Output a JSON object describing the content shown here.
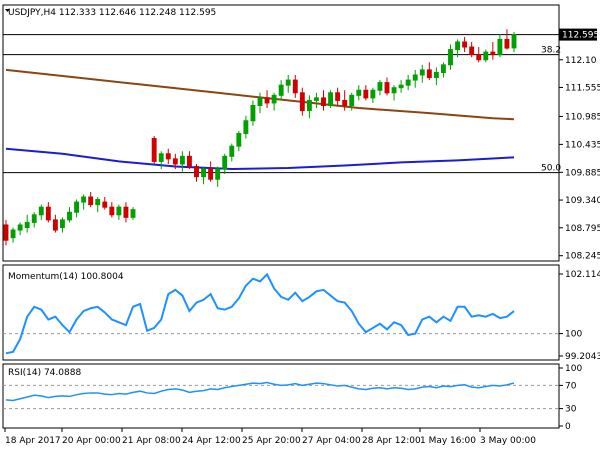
{
  "chart_data": [
    {
      "id": "price",
      "type": "candlestick",
      "title": "USDJPY,H4  112.333  112.646  112.248  112.595",
      "ylim": [
        108.2,
        113.0
      ],
      "x_ticks": [
        "18 Apr 2017",
        "20 Apr 00:00",
        "21 Apr 08:00",
        "24 Apr 12:00",
        "25 Apr 20:00",
        "27 Apr 04:00",
        "28 Apr 12:00",
        "1 May 16:00",
        "3 May 00:00"
      ],
      "y_ticks": [
        "112.595",
        "112.10",
        "111.555",
        "110.985",
        "110.435",
        "109.885",
        "109.340",
        "108.795",
        "108.245"
      ],
      "last_price": 112.595,
      "last_price_label": "112.595",
      "fib_levels": [
        {
          "label": "38.2",
          "value": 112.2
        },
        {
          "label": "50.0",
          "value": 109.88
        }
      ],
      "colors": {
        "bull": "#00a000",
        "bear": "#d00000",
        "ma_slow": "#8b4513",
        "ma_fast": "#1c1cd6",
        "price_line": "#000000"
      },
      "candles": [
        [
          108.85,
          108.95,
          108.45,
          108.55
        ],
        [
          108.6,
          108.8,
          108.5,
          108.75
        ],
        [
          108.75,
          108.9,
          108.65,
          108.85
        ],
        [
          108.8,
          109.05,
          108.7,
          108.9
        ],
        [
          108.9,
          109.1,
          108.8,
          109.05
        ],
        [
          109.05,
          109.25,
          108.95,
          109.2
        ],
        [
          109.2,
          109.3,
          108.9,
          108.95
        ],
        [
          108.95,
          109.05,
          108.7,
          108.75
        ],
        [
          108.8,
          109.0,
          108.7,
          108.95
        ],
        [
          108.95,
          109.2,
          108.9,
          109.1
        ],
        [
          109.1,
          109.35,
          109.0,
          109.3
        ],
        [
          109.3,
          109.45,
          109.15,
          109.4
        ],
        [
          109.4,
          109.5,
          109.2,
          109.25
        ],
        [
          109.25,
          109.4,
          109.1,
          109.35
        ],
        [
          109.3,
          109.4,
          109.15,
          109.2
        ],
        [
          109.2,
          109.3,
          109.0,
          109.05
        ],
        [
          109.05,
          109.25,
          108.95,
          109.2
        ],
        [
          109.2,
          109.3,
          108.9,
          109.0
        ],
        [
          109.0,
          109.2,
          108.95,
          109.15
        ],
        [
          null,
          null,
          null,
          null
        ],
        [
          null,
          null,
          null,
          null
        ],
        [
          110.55,
          110.6,
          110.05,
          110.1
        ],
        [
          110.1,
          110.3,
          109.95,
          110.25
        ],
        [
          110.25,
          110.35,
          110.05,
          110.15
        ],
        [
          110.15,
          110.25,
          109.95,
          110.05
        ],
        [
          110.05,
          110.3,
          109.9,
          110.2
        ],
        [
          110.2,
          110.3,
          109.95,
          110.0
        ],
        [
          110.0,
          110.05,
          109.7,
          109.8
        ],
        [
          109.8,
          110.0,
          109.65,
          109.95
        ],
        [
          109.95,
          110.1,
          109.7,
          109.75
        ],
        [
          109.75,
          110.0,
          109.6,
          109.95
        ],
        [
          109.95,
          110.25,
          109.85,
          110.2
        ],
        [
          110.2,
          110.45,
          110.1,
          110.4
        ],
        [
          110.4,
          110.7,
          110.3,
          110.65
        ],
        [
          110.65,
          111.0,
          110.55,
          110.9
        ],
        [
          110.9,
          111.3,
          110.8,
          111.2
        ],
        [
          111.2,
          111.45,
          111.05,
          111.35
        ],
        [
          111.35,
          111.5,
          111.15,
          111.25
        ],
        [
          111.25,
          111.45,
          111.1,
          111.4
        ],
        [
          111.4,
          111.7,
          111.3,
          111.6
        ],
        [
          111.6,
          111.8,
          111.45,
          111.7
        ],
        [
          111.7,
          111.8,
          111.35,
          111.45
        ],
        [
          111.45,
          111.55,
          111.0,
          111.1
        ],
        [
          111.1,
          111.4,
          110.95,
          111.3
        ],
        [
          111.3,
          111.45,
          111.15,
          111.35
        ],
        [
          111.35,
          111.5,
          111.1,
          111.2
        ],
        [
          111.2,
          111.5,
          111.15,
          111.45
        ],
        [
          111.45,
          111.55,
          111.2,
          111.3
        ],
        [
          111.3,
          111.5,
          111.1,
          111.2
        ],
        [
          111.2,
          111.45,
          111.1,
          111.4
        ],
        [
          111.4,
          111.6,
          111.3,
          111.5
        ],
        [
          111.5,
          111.6,
          111.3,
          111.35
        ],
        [
          111.35,
          111.55,
          111.25,
          111.5
        ],
        [
          111.5,
          111.7,
          111.4,
          111.65
        ],
        [
          111.65,
          111.75,
          111.4,
          111.45
        ],
        [
          111.45,
          111.6,
          111.3,
          111.55
        ],
        [
          111.55,
          111.7,
          111.45,
          111.6
        ],
        [
          111.6,
          111.8,
          111.5,
          111.7
        ],
        [
          111.7,
          111.9,
          111.55,
          111.8
        ],
        [
          111.8,
          112.0,
          111.65,
          111.9
        ],
        [
          111.9,
          112.05,
          111.7,
          111.75
        ],
        [
          111.75,
          111.95,
          111.6,
          111.85
        ],
        [
          111.85,
          112.05,
          111.75,
          112.0
        ],
        [
          112.0,
          112.4,
          111.9,
          112.3
        ],
        [
          112.3,
          112.5,
          112.15,
          112.45
        ],
        [
          112.45,
          112.55,
          112.25,
          112.35
        ],
        [
          112.35,
          112.45,
          112.15,
          112.2
        ],
        [
          112.2,
          112.35,
          112.05,
          112.1
        ],
        [
          112.1,
          112.3,
          112.05,
          112.25
        ],
        [
          112.25,
          112.45,
          112.1,
          112.2
        ],
        [
          112.2,
          112.6,
          112.15,
          112.5
        ],
        [
          112.5,
          112.7,
          112.3,
          112.33
        ],
        [
          112.333,
          112.646,
          112.248,
          112.595
        ]
      ],
      "ma_slow": [
        [
          0,
          111.9
        ],
        [
          10,
          111.75
        ],
        [
          20,
          111.6
        ],
        [
          30,
          111.45
        ],
        [
          40,
          111.3
        ],
        [
          50,
          111.15
        ],
        [
          60,
          111.05
        ],
        [
          69,
          110.95
        ],
        [
          72,
          110.93
        ]
      ],
      "ma_fast": [
        [
          0,
          110.35
        ],
        [
          8,
          110.25
        ],
        [
          16,
          110.1
        ],
        [
          24,
          110.0
        ],
        [
          32,
          109.95
        ],
        [
          40,
          109.97
        ],
        [
          48,
          110.02
        ],
        [
          56,
          110.08
        ],
        [
          64,
          110.12
        ],
        [
          72,
          110.18
        ]
      ]
    },
    {
      "id": "momentum",
      "type": "line",
      "title": "Momentum(14) 100.8004",
      "ylim": [
        99.2043,
        102.1142
      ],
      "y_ticks": [
        "102.1142",
        "100",
        "99.2043"
      ],
      "reference_level": 100,
      "color": "#1e90ff",
      "values": [
        99.3,
        99.35,
        99.8,
        100.6,
        100.95,
        100.85,
        100.5,
        100.6,
        100.3,
        100.05,
        100.5,
        100.8,
        100.9,
        100.95,
        100.75,
        100.5,
        100.4,
        100.3,
        100.95,
        101.05,
        100.1,
        100.2,
        100.5,
        101.4,
        101.55,
        101.35,
        100.8,
        101.1,
        101.2,
        101.4,
        100.9,
        100.85,
        100.95,
        101.25,
        101.7,
        101.95,
        101.85,
        102.1,
        101.6,
        101.3,
        101.2,
        101.45,
        101.15,
        101.3,
        101.5,
        101.55,
        101.35,
        101.15,
        101.1,
        100.8,
        100.35,
        100.05,
        100.2,
        100.35,
        100.15,
        100.4,
        100.3,
        99.95,
        100.0,
        100.5,
        100.6,
        100.4,
        100.6,
        100.45,
        100.95,
        100.95,
        100.6,
        100.65,
        100.6,
        100.7,
        100.55,
        100.6,
        100.8
      ]
    },
    {
      "id": "rsi",
      "type": "line",
      "title": "RSI(14) 74.0888",
      "ylim": [
        0,
        100
      ],
      "y_ticks": [
        "100",
        "70",
        "30",
        "0"
      ],
      "levels": [
        70,
        30
      ],
      "color": "#1e90ff",
      "values": [
        45,
        44,
        47,
        50,
        53,
        52,
        49,
        51,
        52,
        51,
        54,
        56,
        57,
        57,
        55,
        54,
        56,
        55,
        58,
        60,
        57,
        56,
        60,
        63,
        64,
        62,
        58,
        60,
        61,
        64,
        63,
        66,
        68,
        70,
        72,
        74,
        73,
        75,
        72,
        70,
        71,
        73,
        70,
        72,
        74,
        73,
        71,
        69,
        70,
        67,
        64,
        63,
        65,
        66,
        64,
        66,
        65,
        63,
        64,
        67,
        68,
        66,
        69,
        68,
        70,
        71,
        67,
        66,
        68,
        70,
        69,
        71,
        74
      ]
    }
  ]
}
